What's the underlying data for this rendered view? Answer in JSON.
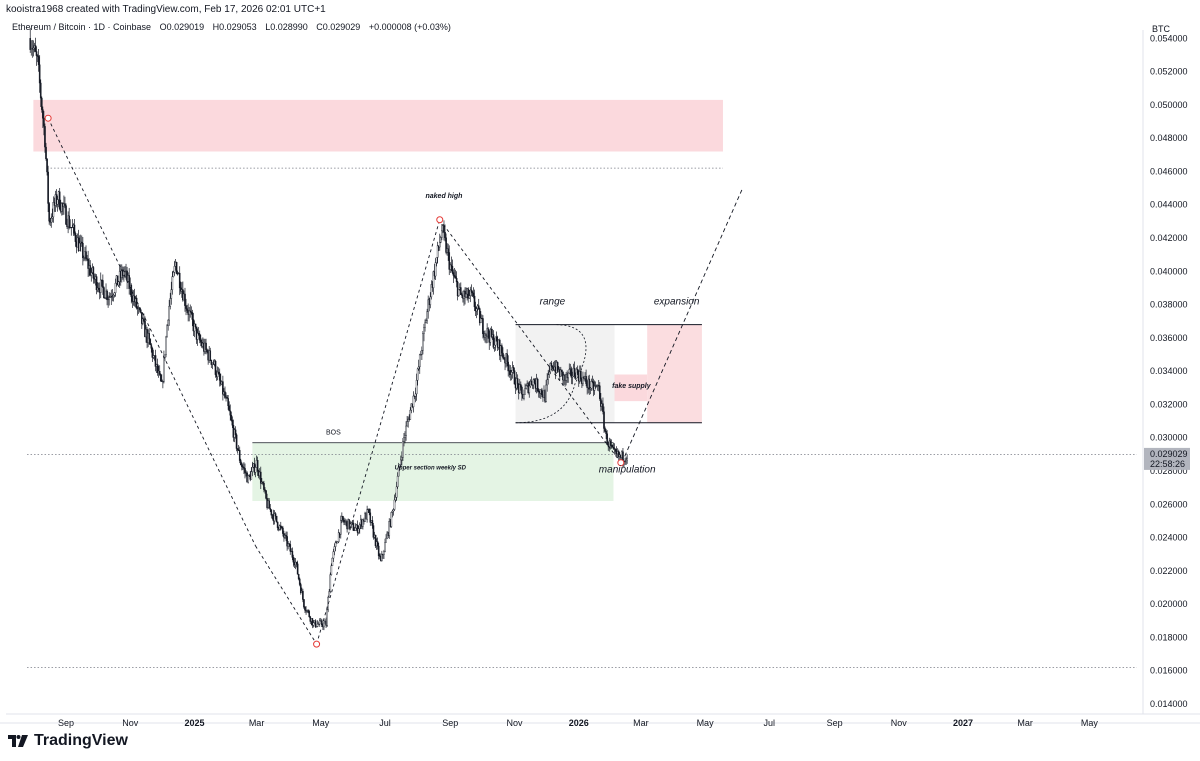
{
  "header": {
    "creator_line": "kooistra1968 created with TradingView.com, Feb 17, 2026 02:01 UTC+1",
    "symbol": "Ethereum / Bitcoin · 1D · Coinbase",
    "open": "O0.029019",
    "high": "H0.029053",
    "low": "L0.028990",
    "close": "C0.029029",
    "change": "+0.000008 (+0.03%)",
    "currency": "BTC"
  },
  "footer": {
    "brand": "TradingView"
  },
  "colors": {
    "candle": "#131722",
    "supply_zone": "#fbd9dd",
    "demand_zone": "#e4f4e4",
    "range_box": "#ececec",
    "price_tag": "#b2b5be",
    "marker": "#e53935"
  },
  "chart_data": {
    "type": "candlestick",
    "ylim": [
      0.0134,
      0.0545
    ],
    "y_ticks": [
      "0.054000",
      "0.052000",
      "0.050000",
      "0.048000",
      "0.046000",
      "0.044000",
      "0.042000",
      "0.040000",
      "0.038000",
      "0.036000",
      "0.034000",
      "0.032000",
      "0.030000",
      "0.028000",
      "0.026000",
      "0.024000",
      "0.022000",
      "0.020000",
      "0.018000",
      "0.016000",
      "0.014000"
    ],
    "x_ticks": [
      {
        "label": "Sep",
        "bold": false
      },
      {
        "label": "Nov",
        "bold": false
      },
      {
        "label": "2025",
        "bold": true
      },
      {
        "label": "Mar",
        "bold": false
      },
      {
        "label": "May",
        "bold": false
      },
      {
        "label": "Jul",
        "bold": false
      },
      {
        "label": "Sep",
        "bold": false
      },
      {
        "label": "Nov",
        "bold": false
      },
      {
        "label": "2026",
        "bold": true
      },
      {
        "label": "Mar",
        "bold": false
      },
      {
        "label": "May",
        "bold": false
      },
      {
        "label": "Jul",
        "bold": false
      },
      {
        "label": "Sep",
        "bold": false
      },
      {
        "label": "Nov",
        "bold": false
      },
      {
        "label": "2027",
        "bold": true
      },
      {
        "label": "Mar",
        "bold": false
      },
      {
        "label": "May",
        "bold": false
      }
    ],
    "last_price": {
      "value": 0.029029,
      "label": "0.029029",
      "countdown": "22:58:26"
    },
    "price_path": [
      [
        "2024-07-29",
        0.054
      ],
      [
        "2024-08-05",
        0.0525
      ],
      [
        "2024-08-12",
        0.048
      ],
      [
        "2024-08-16",
        0.043
      ],
      [
        "2024-08-24",
        0.0445
      ],
      [
        "2024-09-07",
        0.0425
      ],
      [
        "2024-09-28",
        0.0395
      ],
      [
        "2024-10-12",
        0.0385
      ],
      [
        "2024-10-26",
        0.04
      ],
      [
        "2024-11-09",
        0.0375
      ],
      [
        "2024-11-20",
        0.0355
      ],
      [
        "2024-12-01",
        0.033
      ],
      [
        "2024-12-07",
        0.0375
      ],
      [
        "2024-12-14",
        0.0405
      ],
      [
        "2024-12-24",
        0.038
      ],
      [
        "2025-01-04",
        0.036
      ],
      [
        "2025-01-19",
        0.0345
      ],
      [
        "2025-02-01",
        0.032
      ],
      [
        "2025-02-14",
        0.0285
      ],
      [
        "2025-02-21",
        0.0275
      ],
      [
        "2025-03-01",
        0.0285
      ],
      [
        "2025-03-11",
        0.026
      ],
      [
        "2025-03-24",
        0.0245
      ],
      [
        "2025-04-07",
        0.0225
      ],
      [
        "2025-04-15",
        0.02
      ],
      [
        "2025-04-24",
        0.0188
      ],
      [
        "2025-05-06",
        0.0188
      ],
      [
        "2025-05-11",
        0.0225
      ],
      [
        "2025-05-21",
        0.025
      ],
      [
        "2025-06-04",
        0.0245
      ],
      [
        "2025-06-15",
        0.0255
      ],
      [
        "2025-06-27",
        0.0225
      ],
      [
        "2025-07-08",
        0.0255
      ],
      [
        "2025-07-19",
        0.03
      ],
      [
        "2025-07-30",
        0.033
      ],
      [
        "2025-08-11",
        0.038
      ],
      [
        "2025-08-24",
        0.0425
      ],
      [
        "2025-09-02",
        0.04
      ],
      [
        "2025-09-11",
        0.0385
      ],
      [
        "2025-09-21",
        0.0385
      ],
      [
        "2025-10-03",
        0.0365
      ],
      [
        "2025-10-17",
        0.0355
      ],
      [
        "2025-10-29",
        0.034
      ],
      [
        "2025-11-08",
        0.0325
      ],
      [
        "2025-11-18",
        0.0335
      ],
      [
        "2025-11-30",
        0.0325
      ],
      [
        "2025-12-06",
        0.0345
      ],
      [
        "2025-12-19",
        0.0335
      ],
      [
        "2025-12-29",
        0.034
      ],
      [
        "2026-01-13",
        0.033
      ],
      [
        "2026-01-20",
        0.033
      ],
      [
        "2026-01-27",
        0.03
      ],
      [
        "2026-02-03",
        0.029
      ],
      [
        "2026-02-10",
        0.0288
      ],
      [
        "2026-02-17",
        0.029
      ]
    ],
    "marked_points": [
      {
        "date": "2024-08-15",
        "value": 0.0492
      },
      {
        "date": "2025-08-22",
        "value": 0.0431
      },
      {
        "date": "2025-04-27",
        "value": 0.0176
      },
      {
        "date": "2026-02-10",
        "value": 0.0285
      }
    ],
    "zones": [
      {
        "name": "supply",
        "from": "2024-08-01",
        "to": "2026-05-18",
        "top": 0.0503,
        "bottom": 0.0472
      },
      {
        "name": "demand",
        "from": "2025-02-25",
        "to": "2026-02-03",
        "top": 0.0297,
        "bottom": 0.0262
      },
      {
        "name": "range",
        "from": "2025-11-02",
        "to": "2026-02-04",
        "top": 0.0368,
        "bottom": 0.0309
      },
      {
        "name": "fake_supply",
        "from": "2026-02-04",
        "to": "2026-03-07",
        "top": 0.0338,
        "bottom": 0.0322
      },
      {
        "name": "expansion",
        "from": "2026-03-07",
        "to": "2026-04-28",
        "top": 0.0368,
        "bottom": 0.0309
      }
    ],
    "horizontal_lines": [
      {
        "value": 0.0462,
        "from": "2024-08-14",
        "to": "2026-05-18",
        "style": "dotted"
      },
      {
        "value": 0.029,
        "from": "2024-07-26",
        "to": "2027-06-15",
        "style": "dotted"
      },
      {
        "value": 0.0162,
        "from": "2024-07-26",
        "to": "2027-06-15",
        "style": "dotted"
      }
    ],
    "projection": [
      [
        "2026-02-11",
        0.0285
      ],
      [
        "2026-06-05",
        0.0449
      ]
    ],
    "annotations": [
      {
        "text": "naked high",
        "date": "2025-08-26",
        "value": 0.0444,
        "style": "bold-italic"
      },
      {
        "text": "range",
        "date": "2025-12-07",
        "value": 0.038,
        "style": "italic"
      },
      {
        "text": "expansion",
        "date": "2026-04-04",
        "value": 0.038,
        "style": "italic"
      },
      {
        "text": "fake supply",
        "date": "2026-02-20",
        "value": 0.033,
        "style": "bold-italic"
      },
      {
        "text": "BOS",
        "date": "2025-05-13",
        "value": 0.0302,
        "style": "normal"
      },
      {
        "text": "Upper section weekly SD",
        "date": "2025-08-13",
        "value": 0.0281,
        "style": "bold-italic"
      },
      {
        "text": "manipulation",
        "date": "2026-02-16",
        "value": 0.0279,
        "style": "italic"
      }
    ]
  }
}
